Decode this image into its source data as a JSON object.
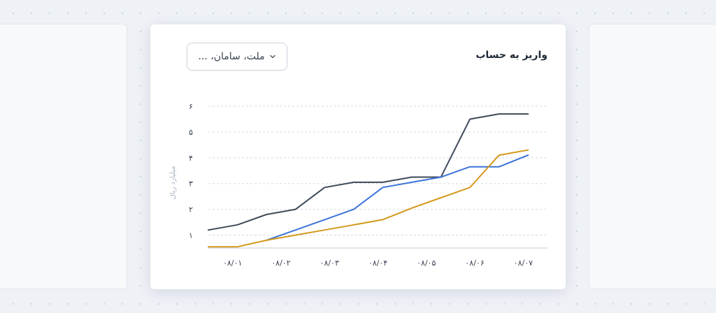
{
  "card": {
    "title": "واریز به حساب"
  },
  "bank_filter": {
    "selected": "ملت، سامان، ...",
    "icon": "chevron-down-icon"
  },
  "chart_data": {
    "type": "line",
    "title": "",
    "xlabel": "",
    "ylabel": "میلیارد ریال",
    "categories": [
      "۰۸/۰۱",
      "۰۸/۰۲",
      "۰۸/۰۳",
      "۰۸/۰۴",
      "۰۸/۰۵",
      "۰۸/۰۶",
      "۰۸/۰۷"
    ],
    "y_ticks": [
      {
        "value": 1,
        "label": "۱"
      },
      {
        "value": 2,
        "label": "۲"
      },
      {
        "value": 3,
        "label": "۳"
      },
      {
        "value": 4,
        "label": "۴"
      },
      {
        "value": 5,
        "label": "۵"
      },
      {
        "value": 6,
        "label": "۶"
      }
    ],
    "ylim": [
      0.5,
      6
    ],
    "xlim": [
      0.5,
      7.5
    ],
    "grid": true,
    "series": [
      {
        "color": "#3f4a5a",
        "points": [
          [
            0.5,
            1.2
          ],
          [
            1.1,
            1.4
          ],
          [
            1.7,
            1.8
          ],
          [
            2.3,
            2.0
          ],
          [
            2.9,
            2.85
          ],
          [
            3.5,
            3.05
          ],
          [
            4.1,
            3.05
          ],
          [
            4.7,
            3.25
          ],
          [
            5.3,
            3.25
          ],
          [
            5.9,
            5.5
          ],
          [
            6.5,
            5.7
          ],
          [
            7.1,
            5.7
          ]
        ]
      },
      {
        "color": "#3b73d9",
        "points": [
          [
            1.7,
            0.8
          ],
          [
            2.3,
            1.2
          ],
          [
            2.9,
            1.6
          ],
          [
            3.5,
            2.0
          ],
          [
            4.1,
            2.85
          ],
          [
            4.7,
            3.05
          ],
          [
            5.3,
            3.25
          ],
          [
            5.9,
            3.65
          ],
          [
            6.5,
            3.65
          ],
          [
            7.1,
            4.1
          ]
        ]
      },
      {
        "color": "#d4991c",
        "points": [
          [
            0.5,
            0.55
          ],
          [
            1.1,
            0.55
          ],
          [
            1.7,
            0.8
          ],
          [
            2.3,
            1.0
          ],
          [
            2.9,
            1.2
          ],
          [
            3.5,
            1.4
          ],
          [
            4.1,
            1.6
          ],
          [
            4.7,
            2.05
          ],
          [
            5.3,
            2.45
          ],
          [
            5.9,
            2.85
          ],
          [
            6.5,
            4.1
          ],
          [
            7.1,
            4.3
          ]
        ]
      }
    ]
  }
}
